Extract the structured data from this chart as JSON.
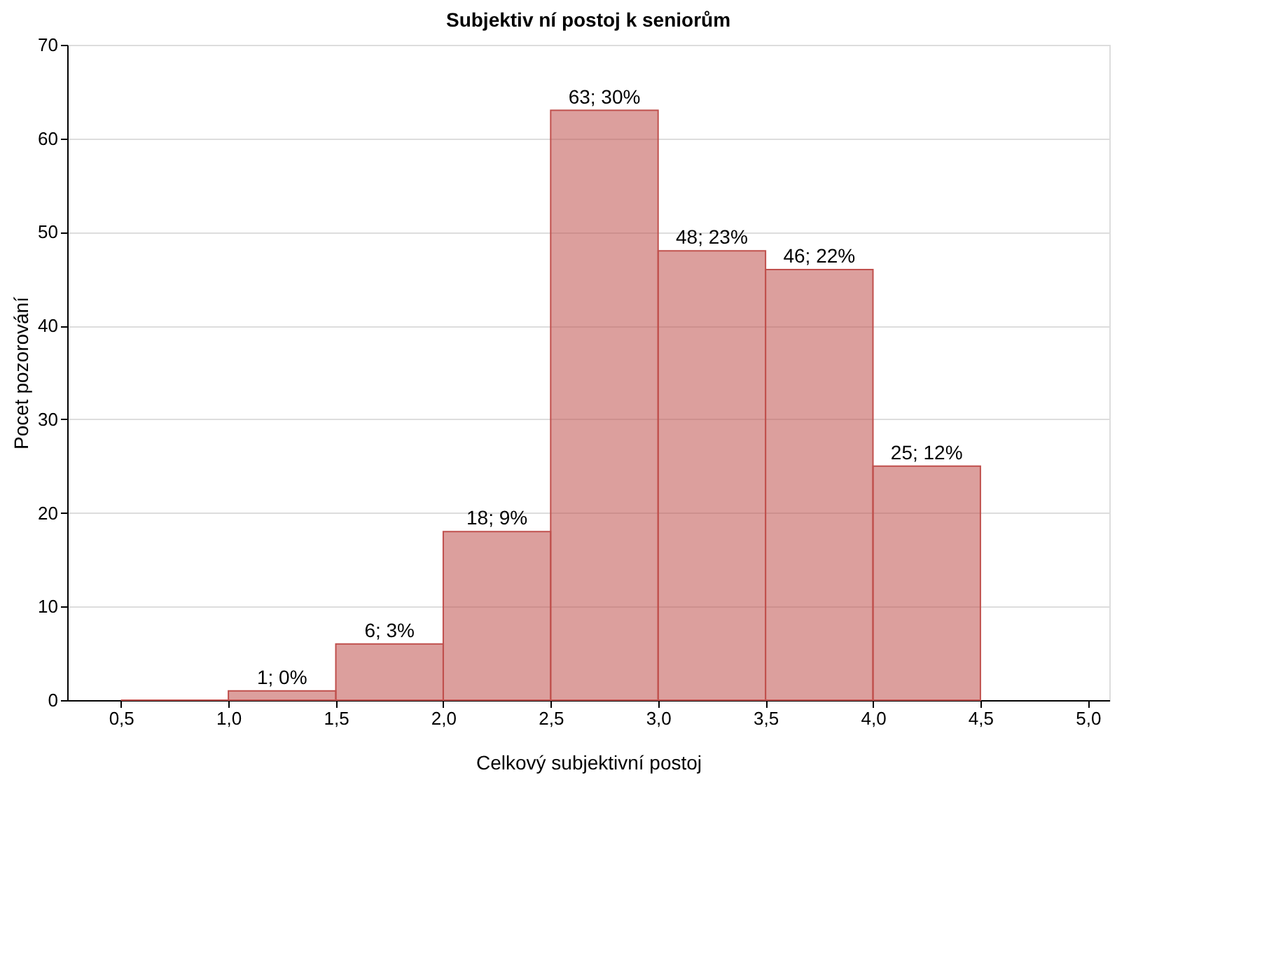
{
  "chart_data": {
    "type": "histogram",
    "title": "Subjektiv ní postoj k seniorům",
    "xlabel": "Celkový subjektivní postoj",
    "ylabel": "Pocet pozorování",
    "bins": [
      0.5,
      1.0,
      1.5,
      2.0,
      2.5,
      3.0,
      3.5,
      4.0,
      4.5
    ],
    "values": [
      0,
      1,
      6,
      18,
      63,
      48,
      46,
      25
    ],
    "value_labels": [
      null,
      "1; 0%",
      "6; 3%",
      "18; 9%",
      "63; 30%",
      "48; 23%",
      "46; 22%",
      "25; 12%"
    ],
    "color": "#c0504d",
    "xlim": [
      0.25,
      5.1
    ],
    "xticks": [
      {
        "value": 0.5,
        "label": "0,5"
      },
      {
        "value": 1.0,
        "label": "1,0"
      },
      {
        "value": 1.5,
        "label": "1,5"
      },
      {
        "value": 2.0,
        "label": "2,0"
      },
      {
        "value": 2.5,
        "label": "2,5"
      },
      {
        "value": 3.0,
        "label": "3,0"
      },
      {
        "value": 3.5,
        "label": "3,5"
      },
      {
        "value": 4.0,
        "label": "4,0"
      },
      {
        "value": 4.5,
        "label": "4,5"
      },
      {
        "value": 5.0,
        "label": "5,0"
      }
    ],
    "ylim": [
      0,
      70
    ],
    "yticks": [
      0,
      10,
      20,
      30,
      40,
      50,
      60,
      70
    ],
    "grid": "y"
  }
}
